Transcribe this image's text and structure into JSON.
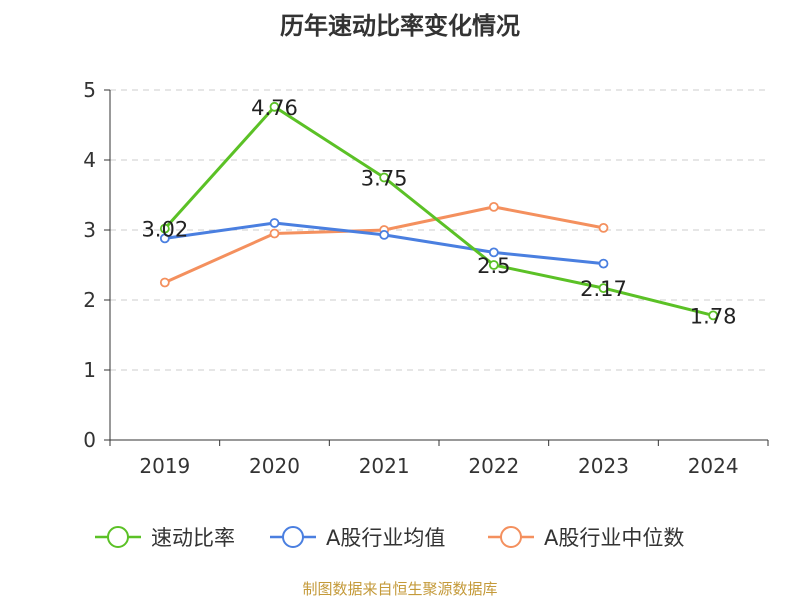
{
  "chart_data": {
    "type": "line",
    "title": "历年速动比率变化情况",
    "categories": [
      "2019",
      "2020",
      "2021",
      "2022",
      "2023",
      "2024"
    ],
    "ylim": [
      0,
      5
    ],
    "yticks": [
      "0",
      "1",
      "2",
      "3",
      "4",
      "5"
    ],
    "grid": "horizontal dashed",
    "legend_position": "bottom",
    "series": [
      {
        "name": "速动比率",
        "color": "#5bc126",
        "values": [
          3.02,
          4.76,
          3.75,
          2.5,
          2.17,
          1.78
        ],
        "labels": [
          "3.02",
          "4.76",
          "3.75",
          "2.5",
          "2.17",
          "1.78"
        ]
      },
      {
        "name": "A股行业均值",
        "color": "#4a7fe0",
        "values": [
          2.88,
          3.1,
          2.93,
          2.68,
          2.52,
          null
        ]
      },
      {
        "name": "A股行业中位数",
        "color": "#f4905e",
        "values": [
          2.25,
          2.95,
          3.0,
          3.33,
          3.03,
          null
        ]
      }
    ],
    "source": "制图数据来自恒生聚源数据库"
  }
}
